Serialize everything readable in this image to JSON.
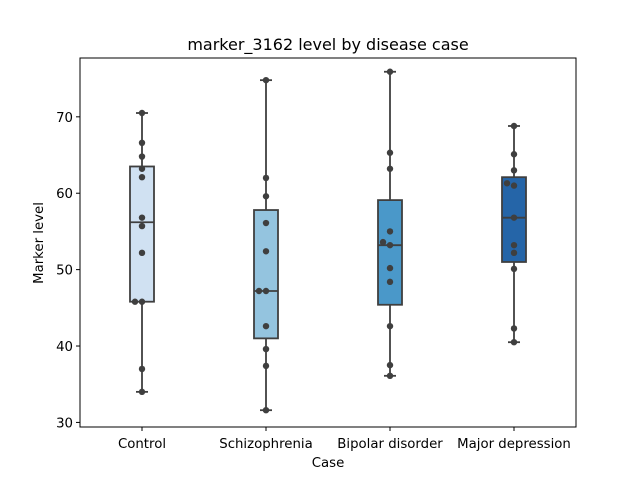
{
  "chart_data": {
    "type": "box",
    "title": "marker_3162 level by disease case",
    "xlabel": "Case",
    "ylabel": "Marker level",
    "categories": [
      "Control",
      "Schizophrenia",
      "Bipolar disorder",
      "Major depression"
    ],
    "ylim": [
      29.4,
      77.7
    ],
    "yticks": [
      30,
      40,
      50,
      60,
      70
    ],
    "box_colors": [
      "#d0e1f2",
      "#94c4df",
      "#4a98c9",
      "#2565a8"
    ],
    "boxes": [
      {
        "category": "Control",
        "min": 34.0,
        "q1": 45.8,
        "median": 56.2,
        "q3": 63.5,
        "max": 70.5
      },
      {
        "category": "Schizophrenia",
        "min": 31.6,
        "q1": 41.0,
        "median": 47.2,
        "q3": 57.8,
        "max": 74.8
      },
      {
        "category": "Bipolar disorder",
        "min": 36.1,
        "q1": 45.4,
        "median": 53.2,
        "q3": 59.1,
        "max": 75.9
      },
      {
        "category": "Major depression",
        "min": 40.5,
        "q1": 51.0,
        "median": 56.8,
        "q3": 62.1,
        "max": 68.8
      }
    ],
    "points": [
      {
        "category": "Control",
        "values": [
          70.5,
          66.6,
          64.8,
          63.2,
          62.1,
          56.8,
          55.7,
          52.2,
          45.8,
          45.8,
          37.0,
          34.0
        ]
      },
      {
        "category": "Schizophrenia",
        "values": [
          74.8,
          62.0,
          59.6,
          56.1,
          52.4,
          47.2,
          47.2,
          42.6,
          39.6,
          37.4,
          31.6
        ]
      },
      {
        "category": "Bipolar disorder",
        "values": [
          75.9,
          65.3,
          63.2,
          55.0,
          53.6,
          53.2,
          50.2,
          48.4,
          42.6,
          37.5,
          36.1
        ]
      },
      {
        "category": "Major depression",
        "values": [
          68.8,
          65.1,
          63.0,
          61.3,
          61.0,
          56.8,
          53.2,
          52.2,
          50.1,
          42.3,
          40.5
        ]
      }
    ]
  }
}
